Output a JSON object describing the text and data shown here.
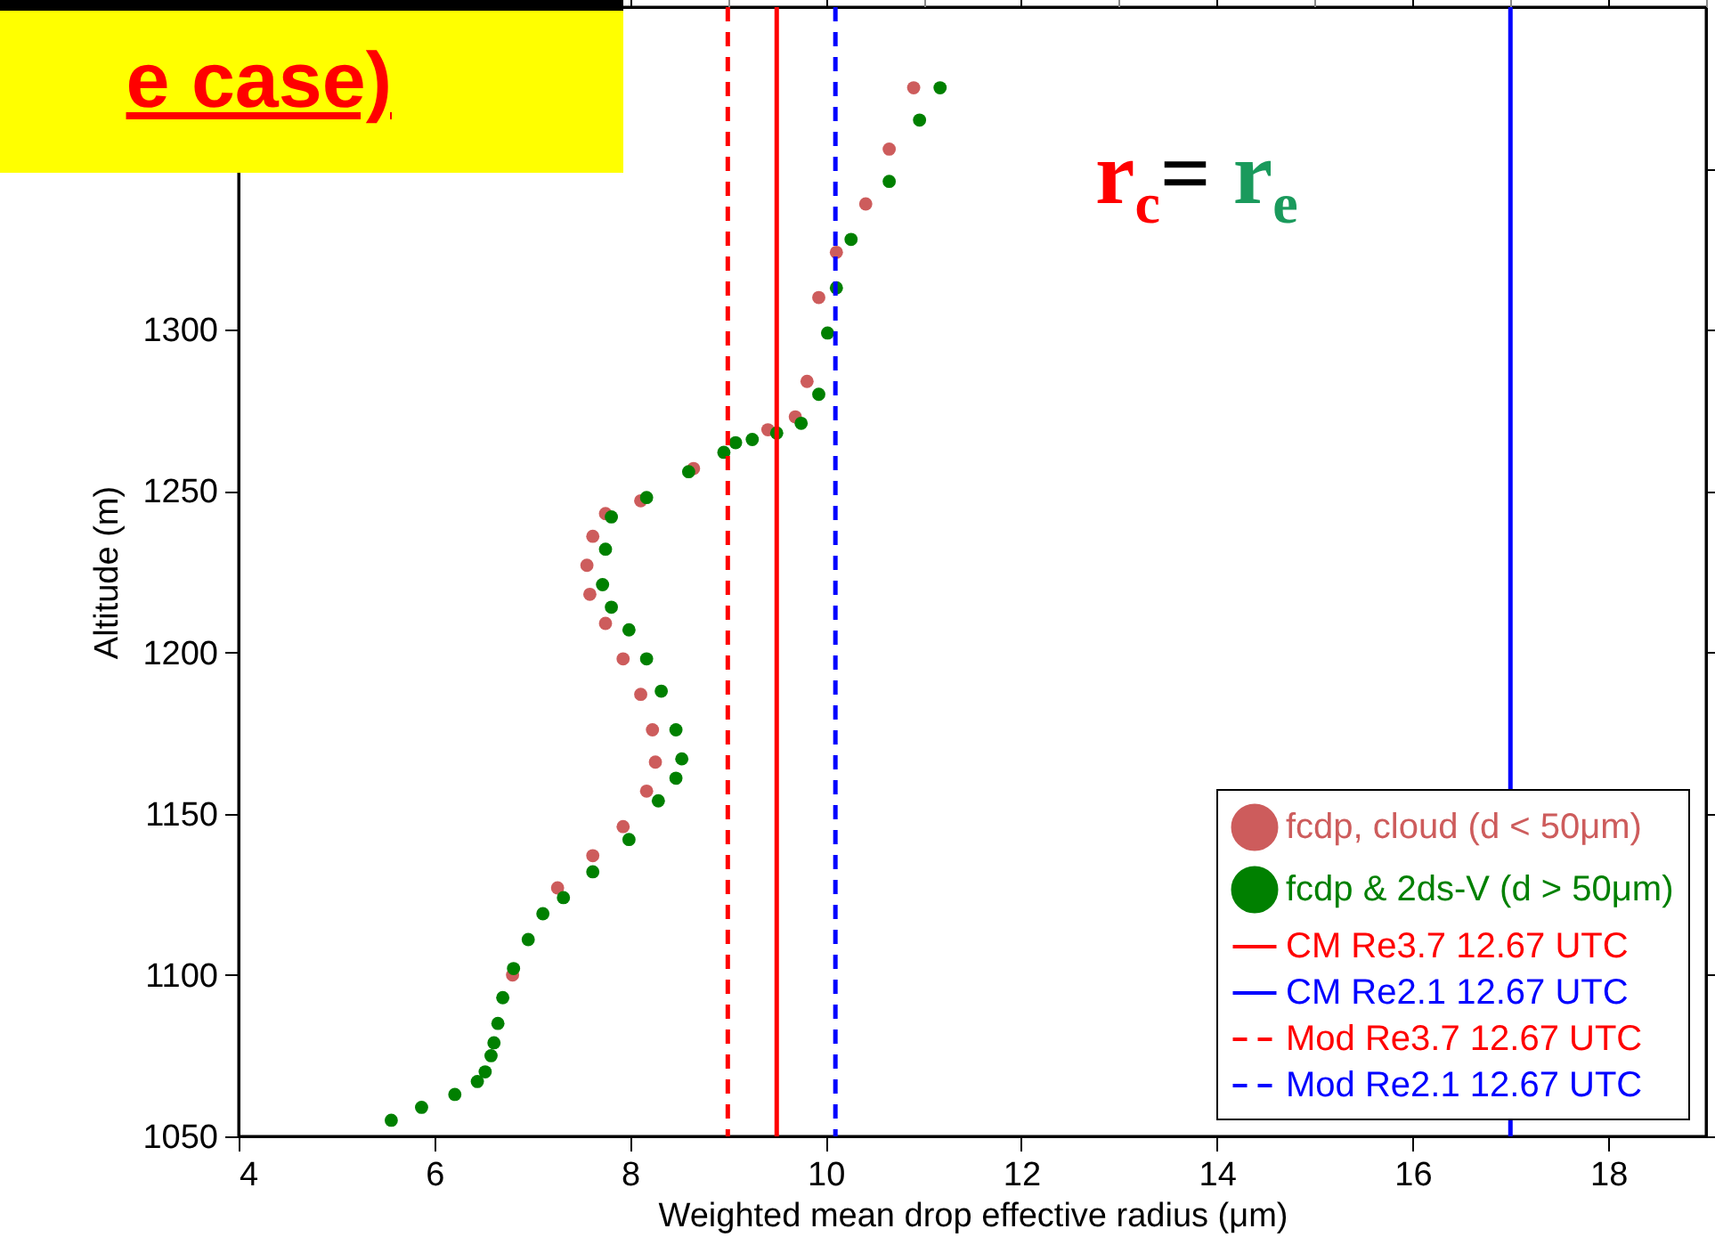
{
  "chart_data": {
    "type": "scatter",
    "xlabel": "Weighted mean drop effective radius (μm)",
    "ylabel": "Altitude (m)",
    "annotations": [
      "e case)",
      "r$_{c}$= r$_{e}$"
    ],
    "xlim": [
      4,
      19
    ],
    "xticks": [
      4,
      6,
      8,
      10,
      12,
      14,
      16,
      18
    ],
    "ylim": [
      1050,
      1400
    ],
    "yticks": [
      1050,
      1100,
      1150,
      1200,
      1250,
      1300,
      {
        "value": 1350,
        "label": null
      }
    ],
    "grid": false,
    "marker": "circle",
    "legend": "bottom right",
    "series": [
      {
        "name": "fcdp, cloud (d < 50μm)",
        "color": "#cd5c5c",
        "x": [
          6.8,
          7.26,
          7.62,
          7.93,
          8.17,
          8.26,
          8.23,
          8.11,
          7.93,
          7.75,
          7.59,
          7.56,
          7.62,
          7.75,
          8.11,
          8.65,
          9.41,
          9.69,
          9.81,
          9.93,
          10.11,
          10.41,
          10.65,
          10.9
        ],
        "values": [
          1100,
          1127,
          1137,
          1146,
          1157,
          1166,
          1176,
          1187,
          1198,
          1209,
          1218,
          1227,
          1236,
          1243,
          1247,
          1257,
          1269,
          1273,
          1284,
          1310,
          1324,
          1339,
          1356,
          1375
        ]
      },
      {
        "name": "fcdp & 2ds-V (d > 50μm)",
        "color": "#008000",
        "x": [
          5.56,
          5.87,
          6.21,
          6.44,
          6.52,
          6.58,
          6.61,
          6.65,
          6.7,
          6.81,
          6.96,
          7.11,
          7.32,
          7.62,
          7.99,
          8.29,
          8.47,
          8.53,
          8.47,
          8.32,
          8.17,
          7.99,
          7.81,
          7.72,
          7.75,
          7.81,
          8.17,
          8.6,
          8.96,
          9.08,
          9.25,
          9.5,
          9.75,
          9.93,
          10.02,
          10.11,
          10.26,
          10.65,
          10.96,
          11.17
        ],
        "values": [
          1055,
          1059,
          1063,
          1067,
          1070,
          1075,
          1079,
          1085,
          1093,
          1102,
          1111,
          1119,
          1124,
          1132,
          1142,
          1154,
          1161,
          1167,
          1176,
          1188,
          1198,
          1207,
          1214,
          1221,
          1232,
          1242,
          1248,
          1256,
          1262,
          1265,
          1266,
          1268,
          1271,
          1280,
          1299,
          1313,
          1328,
          1346,
          1365,
          1375
        ]
      }
    ],
    "ref_lines": [
      {
        "axis": "x",
        "value": 9.5,
        "label": "CM Re3.7 12.67 UTC",
        "color": "#ff0000",
        "line_style": "solid"
      },
      {
        "axis": "x",
        "value": 17,
        "label": "CM Re2.1 12.67 UTC",
        "color": "#0000ff",
        "line_style": "solid"
      },
      {
        "axis": "x",
        "value": 9,
        "label": "Mod Re3.7 12.67 UTC",
        "color": "#ff0000",
        "line_style": "dashed"
      },
      {
        "axis": "x",
        "value": 10.1,
        "label": "Mod Re2.1 12.67 UTC",
        "color": "#0000ff",
        "line_style": "dashed"
      }
    ]
  }
}
